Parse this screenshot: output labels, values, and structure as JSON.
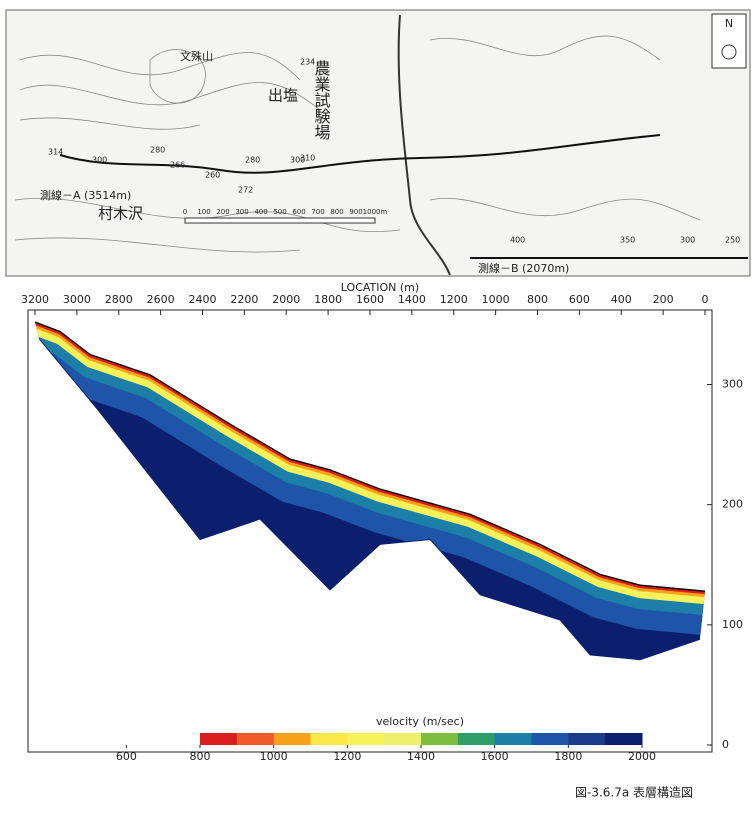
{
  "map": {
    "location_label": "LOCATION (m)",
    "line_a": "測線－A (3514m)",
    "line_b": "測線－B (2070m)",
    "place_1": "農業試験場",
    "place_2": "出塩",
    "place_3": "村木沢",
    "place_4": "文殊山",
    "scale_labels": [
      "0",
      "100",
      "200",
      "300",
      "400",
      "500",
      "600",
      "700",
      "800",
      "900",
      "1000m"
    ],
    "elevations": [
      "314",
      "300",
      "280",
      "266",
      "260",
      "272",
      "280",
      "300",
      "310",
      "400",
      "350",
      "300",
      "250",
      "234"
    ]
  },
  "chart_data": {
    "type": "section",
    "xlim": [
      3200,
      0
    ],
    "xticks": [
      3200,
      3000,
      2800,
      2600,
      2400,
      2200,
      2000,
      1800,
      1600,
      1400,
      1200,
      1000,
      800,
      600,
      400,
      200,
      0
    ],
    "ylim": [
      0,
      362
    ],
    "yticks": [
      0,
      100,
      200,
      300
    ],
    "series": [
      {
        "color": "#000000",
        "x": [
          3200,
          3080,
          2937,
          2650,
          2268,
          1982,
          1791,
          1552,
          1122,
          788,
          501,
          310,
          0
        ],
        "values": [
          352,
          344,
          325,
          308,
          267,
          238,
          229,
          213,
          192,
          167,
          142,
          133,
          128
        ]
      },
      {
        "color": "#0b1f6e",
        "x": [
          3180,
          2900,
          2412,
          2125,
          1791,
          1552,
          1313,
          1074,
          692,
          549,
          310,
          24
        ],
        "values": [
          338,
          279,
          171,
          188,
          129,
          167,
          171,
          125,
          104,
          75,
          71,
          88
        ]
      }
    ],
    "colorbar": {
      "label": "velocity (m/sec)",
      "lim": [
        800,
        2000
      ],
      "ticks": [
        600,
        800,
        1000,
        1200,
        1400,
        1600,
        1800,
        2000
      ],
      "colors": [
        "#d81e1e",
        "#f05a28",
        "#f7a21b",
        "#fbe84a",
        "#f5f25a",
        "#eef06b",
        "#7fbf3f",
        "#2f9e6b",
        "#1c7fa8",
        "#1f55a8",
        "#1a3a8c",
        "#0b1f6e"
      ]
    },
    "caption": "図-3.6.7a 表層構造図"
  }
}
